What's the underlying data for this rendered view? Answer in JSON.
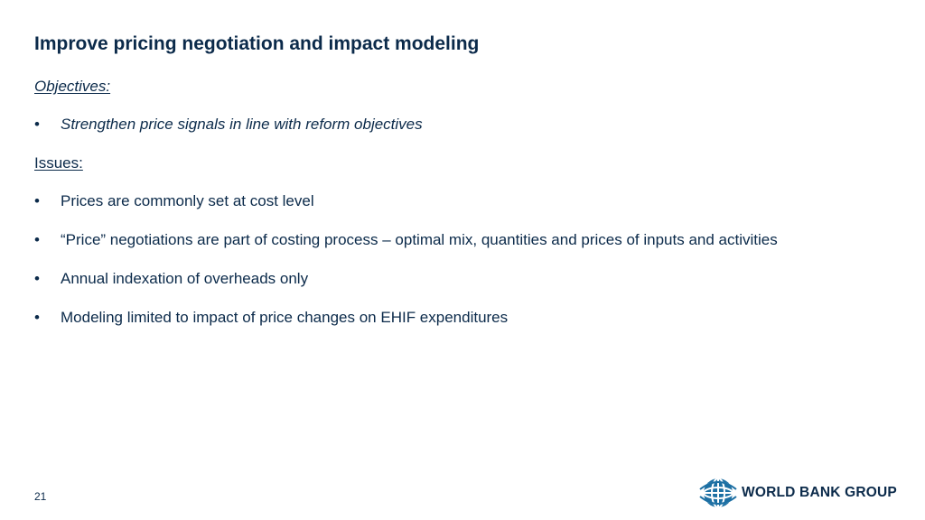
{
  "slide": {
    "title": "Improve pricing negotiation and impact modeling",
    "objectives_label": "Objectives:",
    "objectives": [
      "Strengthen price signals in line with reform objectives"
    ],
    "issues_label": "Issues:",
    "issues": [
      "Prices are commonly set at cost level",
      "“Price” negotiations are part of costing process – optimal mix, quantities and prices of inputs and activities",
      "Annual indexation of overheads only",
      "Modeling limited to impact of price changes on EHIF expenditures"
    ],
    "bullet_char": "•",
    "page_number": "21"
  },
  "logo": {
    "text": "WORLD BANK GROUP",
    "icon": "globe-icon"
  },
  "colors": {
    "text": "#0b2a4a",
    "logo_globe": "#1c6fa3",
    "background": "#ffffff"
  }
}
